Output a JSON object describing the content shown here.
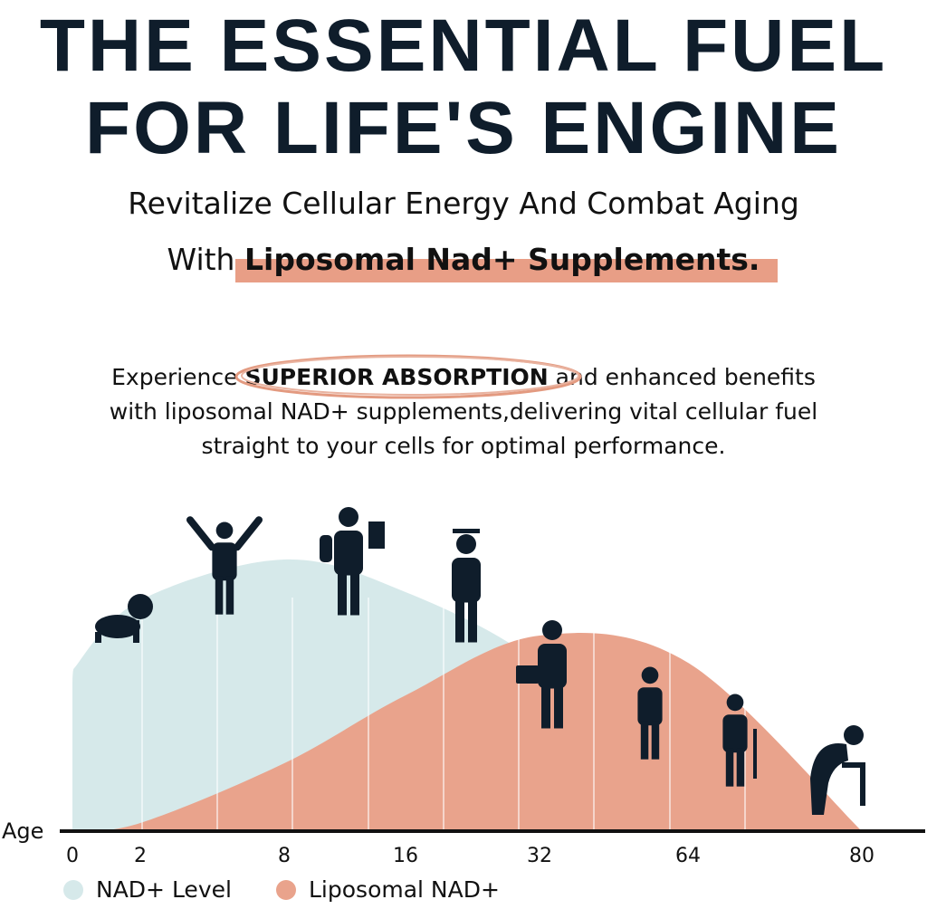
{
  "header": {
    "title_line1": "THE ESSENTIAL FUEL",
    "title_line2": "FOR LIFE'S ENGINE",
    "subtitle_line1": "Revitalize Cellular Energy And Combat Aging",
    "subtitle_prefix": "With",
    "subtitle_highlight": "Liposomal Nad+ Supplements."
  },
  "intro": {
    "before": "Experience",
    "emphasis": "SUPERIOR ABSORPTION",
    "after": "and enhanced benefits",
    "line2": "with liposomal NAD+ supplements,delivering vital cellular fuel",
    "line3": "straight to your cells for optimal performance."
  },
  "colors": {
    "text": "#0f1d2b",
    "nad_level": "#d6e9ea",
    "liposomal": "#e9a38c",
    "highlight": "#e89e86"
  },
  "chart_data": {
    "type": "area",
    "xlabel": "Age",
    "ylabel": "",
    "x_ticks": [
      "0",
      "2",
      "8",
      "16",
      "32",
      "64",
      "80"
    ],
    "grid": "vertical lines",
    "legend": "bottom-left",
    "series": [
      {
        "name": "NAD+ Level",
        "color": "#d6e9ea",
        "x": [
          "0",
          "2",
          "8",
          "16",
          "32",
          "64",
          "80"
        ],
        "values": [
          60,
          85,
          100,
          88,
          62,
          15,
          0
        ]
      },
      {
        "name": "Liposomal NAD+",
        "color": "#e9a38c",
        "x": [
          "0",
          "2",
          "8",
          "16",
          "32",
          "64",
          "80"
        ],
        "values": [
          0,
          3,
          25,
          50,
          72,
          62,
          0
        ]
      }
    ],
    "icons": [
      "crawling-baby-icon",
      "toddler-icon",
      "student-icon",
      "graduate-icon",
      "businessman-icon",
      "middle-aged-man-icon",
      "senior-with-cane-icon",
      "elderly-hunched-icon"
    ]
  }
}
